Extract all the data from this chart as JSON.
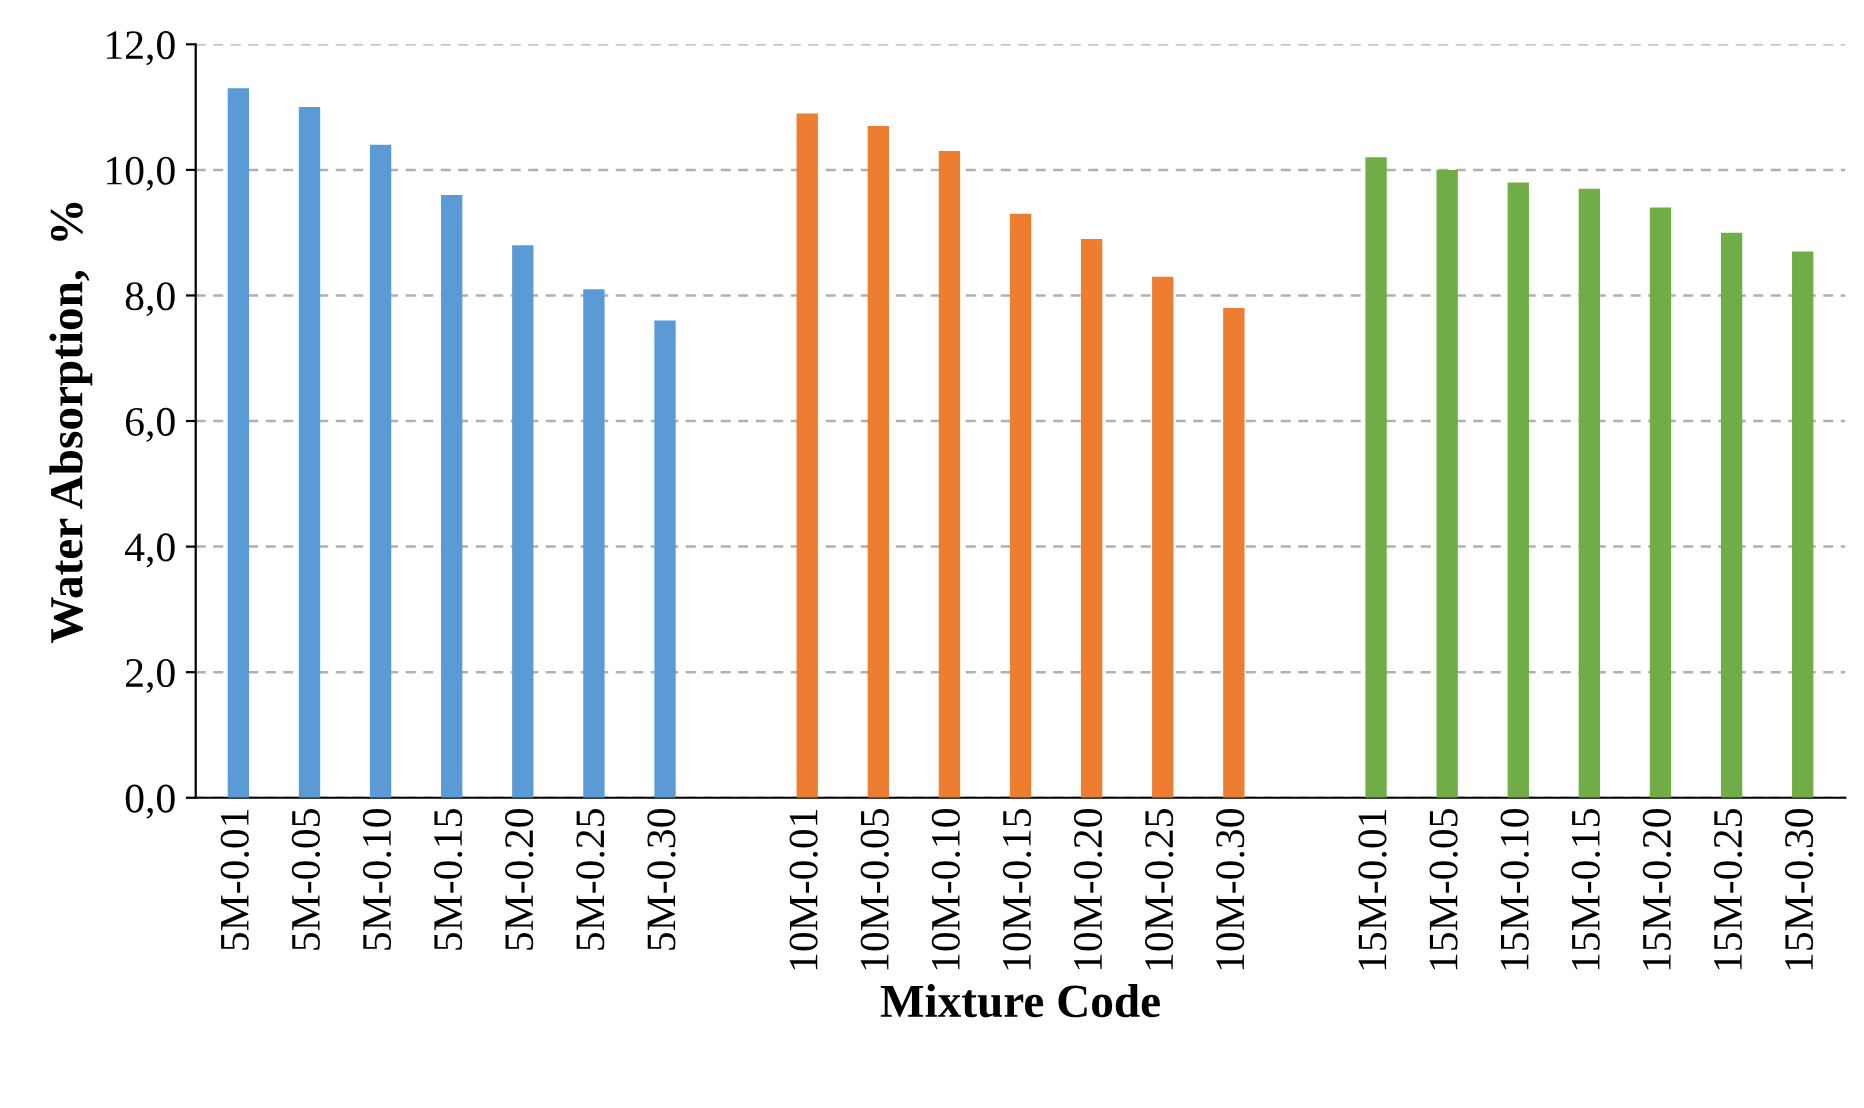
{
  "chart_data": {
    "type": "bar",
    "xlabel": "Mixture Code",
    "ylabel": "Water Absorption,  %",
    "categories": [
      "5M-0.01",
      "5M-0.05",
      "5M-0.10",
      "5M-0.15",
      "5M-0.20",
      "5M-0.25",
      "5M-0.30",
      null,
      "10M-0.01",
      "10M-0.05",
      "10M-0.10",
      "10M-0.15",
      "10M-0.20",
      "10M-0.25",
      "10M-0.30",
      null,
      "15M-0.01",
      "15M-0.05",
      "15M-0.10",
      "15M-0.15",
      "15M-0.20",
      "15M-0.25",
      "15M-0.30"
    ],
    "series": [
      {
        "color": "#5b9bd5",
        "values": [
          11.3,
          11.0,
          10.4,
          9.6,
          8.8,
          8.1,
          7.6,
          null,
          null,
          null,
          null,
          null,
          null,
          null,
          null,
          null,
          null,
          null,
          null,
          null,
          null,
          null,
          null
        ]
      },
      {
        "color": "#ed7d31",
        "values": [
          null,
          null,
          null,
          null,
          null,
          null,
          null,
          null,
          10.9,
          10.7,
          10.3,
          9.3,
          8.9,
          8.3,
          7.8,
          null,
          null,
          null,
          null,
          null,
          null,
          null,
          null
        ]
      },
      {
        "color": "#70ad47",
        "values": [
          null,
          null,
          null,
          null,
          null,
          null,
          null,
          null,
          null,
          null,
          null,
          null,
          null,
          null,
          null,
          null,
          10.2,
          10.0,
          9.8,
          9.7,
          9.4,
          9.0,
          8.7
        ]
      }
    ],
    "ylim": [
      0,
      12
    ],
    "yticks": [
      {
        "value": 0,
        "label": "0,0"
      },
      {
        "value": 2,
        "label": "2,0"
      },
      {
        "value": 4,
        "label": "4,0"
      },
      {
        "value": 6,
        "label": "6,0"
      },
      {
        "value": 8,
        "label": "8,0"
      },
      {
        "value": 10,
        "label": "10,0"
      },
      {
        "value": 12,
        "label": "12,0"
      }
    ],
    "grid": "y"
  }
}
